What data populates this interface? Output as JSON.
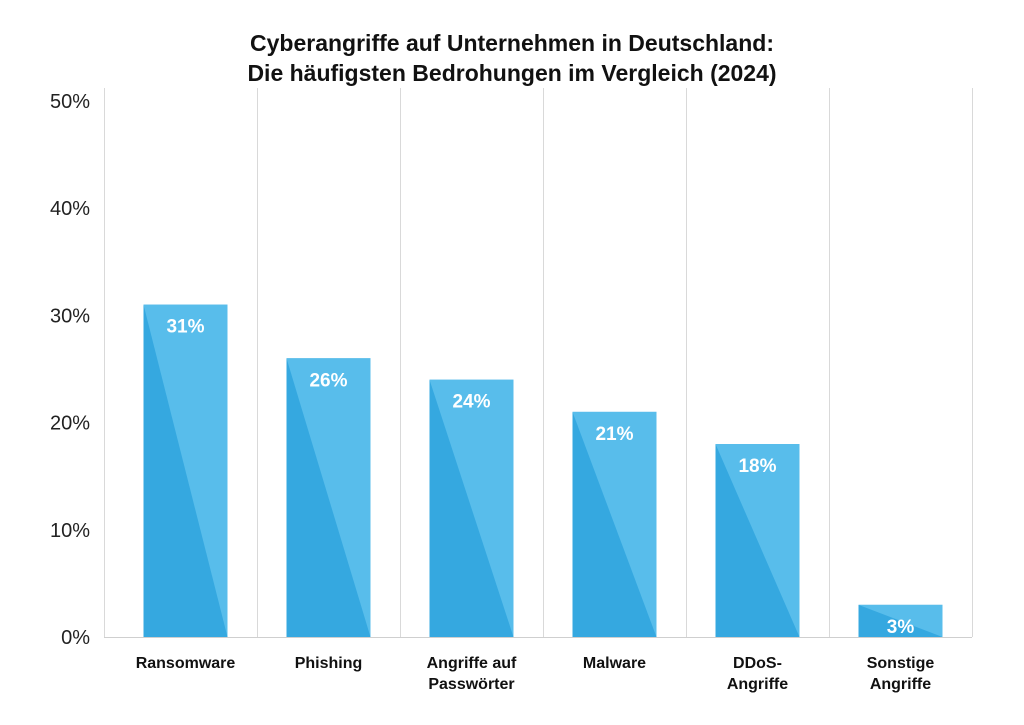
{
  "chart_data": {
    "type": "bar",
    "title_line1": "Cyberangriffe auf Unternehmen in Deutschland:",
    "title_line2": "Die häufigsten Bedrohungen im Vergleich (2024)",
    "categories": [
      [
        "Ransomware"
      ],
      [
        "Phishing"
      ],
      [
        "Angriffe auf",
        "Passwörter"
      ],
      [
        "Malware"
      ],
      [
        "DDoS-",
        "Angriffe"
      ],
      [
        "Sonstige",
        "Angriffe"
      ]
    ],
    "values": [
      31,
      26,
      24,
      21,
      18,
      3
    ],
    "data_labels": [
      "31%",
      "26%",
      "24%",
      "21%",
      "18%",
      "3%"
    ],
    "ylim": [
      0,
      50
    ],
    "yticks": [
      0,
      10,
      20,
      30,
      40,
      50
    ],
    "ytick_labels": [
      "0%",
      "10%",
      "20%",
      "30%",
      "40%",
      "50%"
    ],
    "xlabel": "",
    "ylabel": "",
    "grid": "vertical separators",
    "colors": {
      "bar_dark": "#35a8e0",
      "bar_light": "#58bdeb",
      "gridline": "#d9d9d9",
      "axis": "#cfcfcf"
    }
  }
}
